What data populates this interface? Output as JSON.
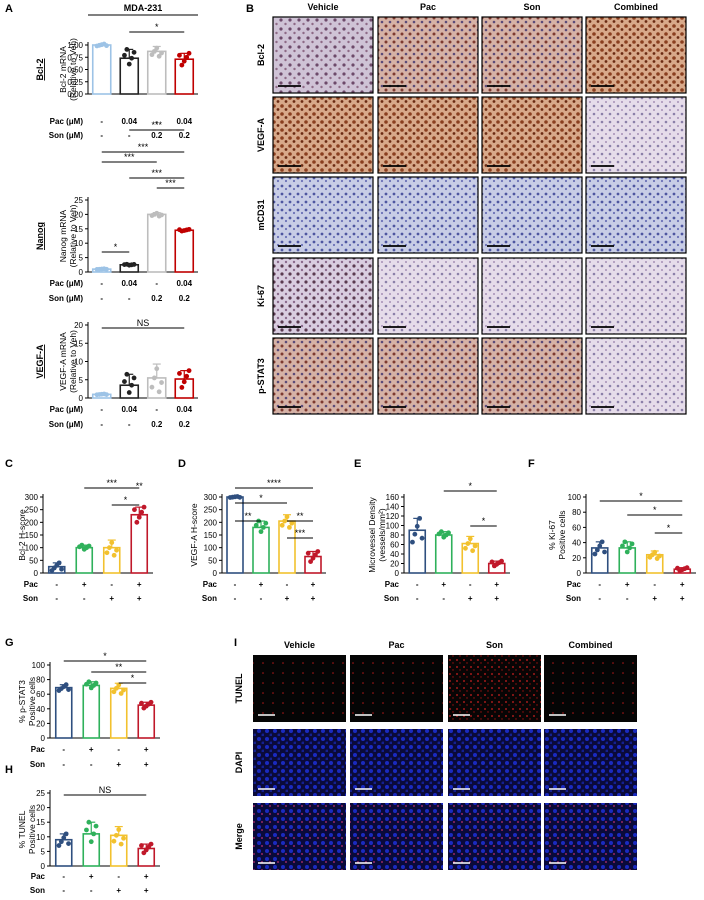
{
  "panel_letters": {
    "A": "A",
    "B": "B",
    "C": "C",
    "D": "D",
    "E": "E",
    "F": "F",
    "G": "G",
    "H": "H",
    "I": "I"
  },
  "colors": {
    "vehicle": "#9dc3e6",
    "pac": "#222222",
    "son": "#bdbdbd",
    "combined": "#c00000",
    "c_vehicle": "#2f4f7f",
    "c_pac": "#2fb15b",
    "c_son": "#f2c12e",
    "c_combined": "#c0182a"
  },
  "treatment_rows": {
    "A": {
      "pac_label": "Pac (μM)",
      "son_label": "Son (μM)",
      "pac": [
        "-",
        "0.04",
        "-",
        "0.04"
      ],
      "son": [
        "-",
        "-",
        "0.2",
        "0.2"
      ]
    },
    "C": {
      "pac_label": "Pac",
      "son_label": "Son",
      "pac": [
        "-",
        "+",
        "-",
        "+"
      ],
      "son": [
        "-",
        "-",
        "+",
        "+"
      ]
    }
  },
  "panel_B": {
    "columns": [
      "Vehicle",
      "Pac",
      "Son",
      "Combined"
    ],
    "rows": [
      "Bcl-2",
      "VEGF-A",
      "mCD31",
      "Ki-67",
      "p-STAT3"
    ]
  },
  "panel_I": {
    "columns": [
      "Vehicle",
      "Pac",
      "Son",
      "Combined"
    ],
    "rows": [
      "TUNEL",
      "DAPI",
      "Merge"
    ]
  },
  "chart_data": [
    {
      "id": "A1",
      "type": "bar",
      "title": "MDA-231",
      "side_label": "Bcl-2",
      "ylabel": "Bcl-2 mRNA (Relative to Veh)",
      "ylim": [
        0,
        1.0
      ],
      "yticks": [
        "0.00",
        "0.25",
        "0.50",
        "0.75",
        "1.00"
      ],
      "categories": [
        "Vehicle",
        "Pac",
        "Son",
        "Combined"
      ],
      "values": [
        1.0,
        0.73,
        0.87,
        0.71
      ],
      "errors": [
        0.0,
        0.18,
        0.1,
        0.12
      ],
      "annotations": [
        "*"
      ]
    },
    {
      "id": "A2",
      "type": "bar",
      "side_label": "Nanog",
      "ylabel": "Nanog mRNA (Relative to Veh)",
      "ylim": [
        0,
        25
      ],
      "yticks": [
        "0",
        "5",
        "10",
        "15",
        "20",
        "25"
      ],
      "categories": [
        "Vehicle",
        "Pac",
        "Son",
        "Combined"
      ],
      "values": [
        1.0,
        2.5,
        20.0,
        14.5
      ],
      "errors": [
        0.1,
        0.2,
        0.6,
        0.3
      ],
      "annotations": [
        "***",
        "***",
        "***",
        "***",
        "***",
        "*"
      ]
    },
    {
      "id": "A3",
      "type": "bar",
      "side_label": "VEGF-A",
      "ylabel": "VEGF-A mRNA (Relative to Veh)",
      "ylim": [
        0,
        20
      ],
      "yticks": [
        "0",
        "5",
        "10",
        "15",
        "20"
      ],
      "categories": [
        "Vehicle",
        "Pac",
        "Son",
        "Combined"
      ],
      "values": [
        1.0,
        3.5,
        5.5,
        5.2
      ],
      "errors": [
        0.1,
        3.0,
        3.8,
        2.3
      ],
      "annotations": [
        "NS"
      ]
    },
    {
      "id": "C",
      "type": "bar",
      "ylabel": "Bcl-2 H-score",
      "ylim": [
        0,
        300
      ],
      "yticks": [
        "0",
        "50",
        "100",
        "150",
        "200",
        "250",
        "300"
      ],
      "categories": [
        "Vehicle",
        "Pac",
        "Son",
        "Combined"
      ],
      "values": [
        25,
        100,
        100,
        230
      ],
      "errors": [
        15,
        10,
        30,
        30
      ],
      "annotations": [
        "***",
        "*",
        "**"
      ]
    },
    {
      "id": "D",
      "type": "bar",
      "ylabel": "VEGF-A H-score",
      "ylim": [
        0,
        300
      ],
      "yticks": [
        "0",
        "50",
        "100",
        "150",
        "200",
        "250",
        "300"
      ],
      "categories": [
        "Vehicle",
        "Pac",
        "Son",
        "Combined"
      ],
      "values": [
        300,
        180,
        205,
        65
      ],
      "errors": [
        2,
        25,
        25,
        20
      ],
      "annotations": [
        "****",
        "*",
        "**",
        "**",
        "***"
      ]
    },
    {
      "id": "E",
      "type": "bar",
      "ylabel": "Microvessel Density (vessels/mm²)",
      "ylim": [
        0,
        160
      ],
      "yticks": [
        "0",
        "20",
        "40",
        "60",
        "80",
        "100",
        "120",
        "140",
        "160"
      ],
      "categories": [
        "Vehicle",
        "Pac",
        "Son",
        "Combined"
      ],
      "values": [
        90,
        80,
        62,
        20
      ],
      "errors": [
        25,
        7,
        15,
        5
      ],
      "annotations": [
        "*",
        "*"
      ]
    },
    {
      "id": "F",
      "type": "bar",
      "ylabel": "% Ki-67 Positive cells",
      "ylim": [
        0,
        100
      ],
      "yticks": [
        "0",
        "20",
        "40",
        "60",
        "80",
        "100"
      ],
      "categories": [
        "Vehicle",
        "Pac",
        "Son",
        "Combined"
      ],
      "values": [
        33,
        33,
        24,
        5
      ],
      "errors": [
        8,
        8,
        5,
        2
      ],
      "annotations": [
        "*",
        "*",
        "*"
      ]
    },
    {
      "id": "G",
      "type": "bar",
      "ylabel": "% p-STAT3 Positive cells",
      "ylim": [
        0,
        100
      ],
      "yticks": [
        "0",
        "20",
        "40",
        "60",
        "80",
        "100"
      ],
      "categories": [
        "Vehicle",
        "Pac",
        "Son",
        "Combined"
      ],
      "values": [
        69,
        72,
        68,
        45
      ],
      "errors": [
        4,
        5,
        7,
        4
      ],
      "annotations": [
        "*",
        "**",
        "*"
      ]
    },
    {
      "id": "H",
      "type": "bar",
      "ylabel": "% TUNEL Positive cells",
      "ylim": [
        0,
        25
      ],
      "yticks": [
        "0",
        "5",
        "10",
        "15",
        "20",
        "25"
      ],
      "categories": [
        "Vehicle",
        "Pac",
        "Son",
        "Combined"
      ],
      "values": [
        9,
        11,
        10.5,
        6
      ],
      "errors": [
        2,
        4,
        3,
        1.5
      ],
      "annotations": [
        "NS"
      ]
    }
  ]
}
